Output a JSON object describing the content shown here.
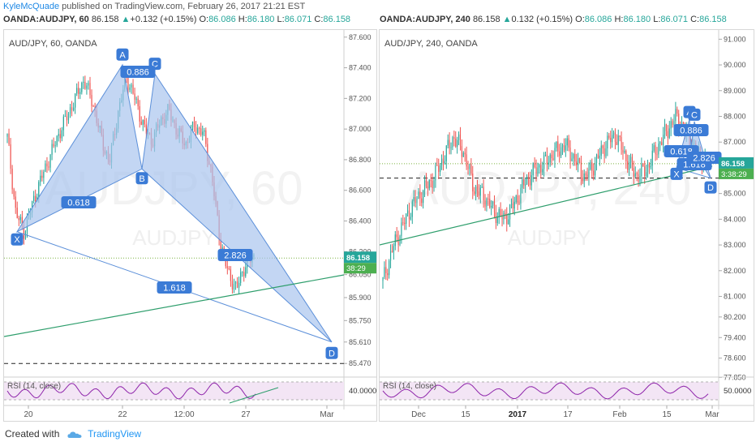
{
  "header": {
    "author": "KyleMcQuade",
    "published_text": " published on TradingView.com, February 26, 2017 21:21 EST"
  },
  "footer": {
    "created_with": "Created with",
    "brand": "TradingView"
  },
  "colors": {
    "up": "#26a69a",
    "down": "#ef5350",
    "pattern_fill": "#a9c4ee",
    "pattern_stroke": "#5b8fd9",
    "label_bg": "#3b7bd6",
    "trendline": "#2e9e6c",
    "rsi": "#8e24aa",
    "price_tag": "#26a69a"
  },
  "charts": [
    {
      "symbol": "OANDA:AUDJPY, 60",
      "title": "AUD/JPY, 60, OANDA",
      "watermark_big": "AUDJPY, 60",
      "watermark_small": "AUDJPY",
      "ohlc": {
        "last": "86.158",
        "change": "+0.132 (+0.15%)",
        "o_label": "O:",
        "o": "86.086",
        "h_label": "H:",
        "h": "86.180",
        "l_label": "L:",
        "l": "86.071",
        "c_label": "C:",
        "c": "86.158"
      },
      "price_tag": "86.158",
      "countdown": "38:29",
      "rsi_label": "RSI (14, close)",
      "rsi_value": "40.0000"
    },
    {
      "symbol": "OANDA:AUDJPY, 240",
      "title": "AUD/JPY, 240, OANDA",
      "watermark_big": "AUDJPY, 240",
      "watermark_small": "AUDJPY",
      "ohlc": {
        "last": "86.158",
        "change": "0.132 (+0.15%)",
        "o_label": "O:",
        "o": "86.086",
        "h_label": "H:",
        "h": "86.180",
        "l_label": "L:",
        "l": "86.071",
        "c_label": "C:",
        "c": "86.158"
      },
      "price_tag": "86.158",
      "countdown": "3:38:29",
      "rsi_label": "RSI (14, close)",
      "rsi_value": "50.0000"
    }
  ],
  "chart_data": [
    {
      "type": "candlestick",
      "title": "AUD/JPY, 60, OANDA",
      "yticks": [
        "87.600",
        "87.400",
        "87.200",
        "87.000",
        "86.800",
        "86.600",
        "86.400",
        "86.200",
        "86.050",
        "85.900",
        "85.750",
        "85.610",
        "85.470"
      ],
      "xticks": [
        "20",
        "22",
        "12:00",
        "27",
        "Mar"
      ],
      "ylim": [
        85.45,
        87.62
      ],
      "close_path": [
        86.95,
        86.45,
        86.33,
        86.52,
        86.68,
        86.82,
        86.96,
        87.08,
        87.2,
        87.32,
        87.18,
        86.95,
        86.78,
        87.1,
        87.34,
        87.2,
        87.02,
        86.92,
        87.05,
        87.12,
        86.98,
        86.9,
        87.02,
        86.98,
        86.72,
        86.28,
        86.05,
        85.96,
        86.12,
        86.158
      ],
      "harmonic": {
        "points": [
          {
            "name": "X",
            "value": 86.33
          },
          {
            "name": "A",
            "value": 87.42
          },
          {
            "name": "B",
            "value": 86.74
          },
          {
            "name": "C",
            "value": 87.36
          },
          {
            "name": "D",
            "value": 85.61
          }
        ],
        "ratios": [
          "0.618",
          "0.886",
          "2.826",
          "1.618"
        ]
      },
      "dashed_level": 85.47,
      "dotted_level": 86.158,
      "rsi_level": "40.0000"
    },
    {
      "type": "candlestick",
      "title": "AUD/JPY, 240, OANDA",
      "yticks": [
        "91.000",
        "90.000",
        "89.000",
        "88.000",
        "87.000",
        "86.000",
        "85.000",
        "84.000",
        "83.000",
        "82.000",
        "81.000",
        "80.200",
        "79.400",
        "78.600",
        "77.850"
      ],
      "xticks": [
        "Dec",
        "15",
        "2017",
        "17",
        "Feb",
        "15",
        "Mar"
      ],
      "ylim": [
        77.8,
        91.2
      ],
      "close_path": [
        81.6,
        82.9,
        83.8,
        84.6,
        85.1,
        85.6,
        86.4,
        87.2,
        86.6,
        85.2,
        84.9,
        84.3,
        84.0,
        84.6,
        85.4,
        85.9,
        86.2,
        86.6,
        86.9,
        86.3,
        85.6,
        86.2,
        86.9,
        87.3,
        86.4,
        85.7,
        85.9,
        86.7,
        87.4,
        88.0,
        87.3,
        86.6,
        86.158
      ],
      "harmonic": {
        "points": [
          {
            "name": "X",
            "value": 86.0
          },
          {
            "name": "A",
            "value": 87.9
          },
          {
            "name": "C",
            "value": 87.8
          },
          {
            "name": "B",
            "value": 86.8
          },
          {
            "name": "D",
            "value": 85.6
          }
        ],
        "ratios": [
          "0.886",
          "0.618",
          "1.618",
          "2.826"
        ]
      },
      "dashed_level": 85.6,
      "dotted_level": 86.158,
      "rsi_level": "50.0000"
    }
  ]
}
